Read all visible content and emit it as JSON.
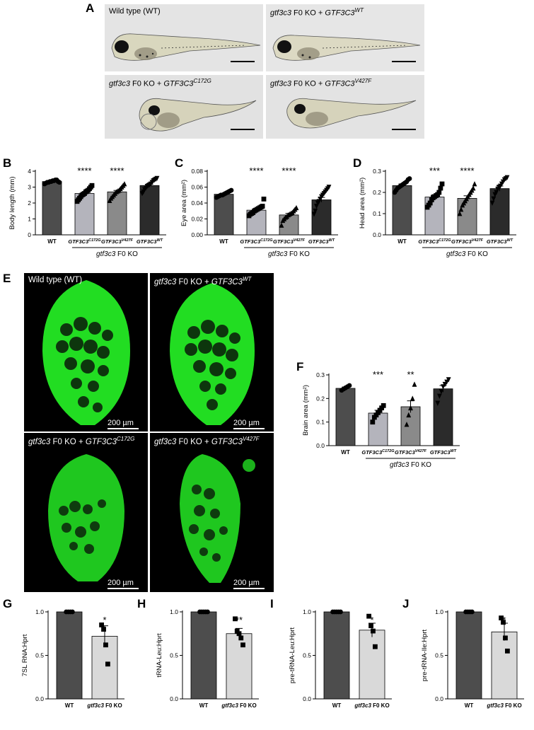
{
  "panel_a": {
    "letter": "A",
    "images": [
      {
        "parts": [
          {
            "t": "Wild type (WT)",
            "i": false
          }
        ]
      },
      {
        "parts": [
          {
            "t": "gtf3c3",
            "i": true
          },
          {
            "t": " F0 KO + ",
            "i": false
          },
          {
            "t": "GTF3C3",
            "i": true
          },
          {
            "t": "WT",
            "i": true,
            "sup": true
          }
        ]
      },
      {
        "parts": [
          {
            "t": "gtf3c3",
            "i": true
          },
          {
            "t": " F0 KO + ",
            "i": false
          },
          {
            "t": "GTF3C3",
            "i": true
          },
          {
            "t": "C172G",
            "i": true,
            "sup": true
          }
        ]
      },
      {
        "parts": [
          {
            "t": "gtf3c3",
            "i": true
          },
          {
            "t": " F0 KO + ",
            "i": false
          },
          {
            "t": "GTF3C3",
            "i": true
          },
          {
            "t": "V427F",
            "i": true,
            "sup": true
          }
        ]
      }
    ]
  },
  "panel_e": {
    "letter": "E",
    "scale_bar": "200 µm",
    "images": [
      {
        "parts": [
          {
            "t": "Wild type (WT)",
            "i": false
          }
        ]
      },
      {
        "parts": [
          {
            "t": "gtf3c3",
            "i": true
          },
          {
            "t": " F0 KO + ",
            "i": false
          },
          {
            "t": "GTF3C3",
            "i": true
          },
          {
            "t": "WT",
            "i": true,
            "sup": true
          }
        ]
      },
      {
        "parts": [
          {
            "t": "gtf3c3",
            "i": true
          },
          {
            "t": " F0 KO + ",
            "i": false
          },
          {
            "t": "GTF3C3",
            "i": true
          },
          {
            "t": "C172G",
            "i": true,
            "sup": true
          }
        ]
      },
      {
        "parts": [
          {
            "t": "gtf3c3",
            "i": true
          },
          {
            "t": " F0 KO + ",
            "i": false
          },
          {
            "t": "GTF3C3",
            "i": true
          },
          {
            "t": "V427F",
            "i": true,
            "sup": true
          }
        ]
      }
    ]
  },
  "group_label": {
    "italic": "gtf3c3",
    "rest": " F0 KO"
  },
  "colors": {
    "wt": "#4d4d4d",
    "c172g": "#b4b4bc",
    "v427f": "#8a8a8a",
    "rescue": "#2b2b2b",
    "ko": "#d9d9d9",
    "green": "#22dd22"
  },
  "chart_data": [
    {
      "id": "B",
      "type": "bar",
      "ylabel": "Body length (mm)",
      "ylim": [
        0,
        4
      ],
      "yticks": [
        "0",
        "1",
        "2",
        "3",
        "4"
      ],
      "categories": [
        {
          "base": "WT"
        },
        {
          "base": "GTF3C3",
          "sup": "C172G"
        },
        {
          "base": "GTF3C3",
          "sup": "V427F"
        },
        {
          "base": "GTF3C3",
          "sup": "WT"
        }
      ],
      "values": [
        3.35,
        2.6,
        2.7,
        3.1
      ],
      "errors": [
        0.04,
        0.09,
        0.09,
        0.08
      ],
      "significance": [
        "",
        "****",
        "****",
        ""
      ],
      "points": [
        [
          3.2,
          3.25,
          3.3,
          3.3,
          3.35,
          3.35,
          3.4,
          3.4,
          3.45,
          3.45,
          3.35,
          3.3
        ],
        [
          2.1,
          2.2,
          2.3,
          2.4,
          2.5,
          2.55,
          2.6,
          2.7,
          2.75,
          2.8,
          2.9,
          3.0,
          3.1
        ],
        [
          2.15,
          2.3,
          2.4,
          2.5,
          2.6,
          2.7,
          2.75,
          2.8,
          2.9,
          3.0,
          3.1,
          3.2
        ],
        [
          2.6,
          2.7,
          2.85,
          2.95,
          3.05,
          3.1,
          3.15,
          3.2,
          3.3,
          3.4,
          3.45,
          3.5,
          3.55
        ]
      ]
    },
    {
      "id": "C",
      "type": "bar",
      "ylabel": "Eye area (mm²)",
      "ylim": [
        0,
        0.08
      ],
      "yticks": [
        "0.00",
        "0.02",
        "0.04",
        "0.06",
        "0.08"
      ],
      "categories": [
        {
          "base": "WT"
        },
        {
          "base": "GTF3C3",
          "sup": "C172G"
        },
        {
          "base": "GTF3C3",
          "sup": "V427F"
        },
        {
          "base": "GTF3C3",
          "sup": "WT"
        }
      ],
      "values": [
        0.051,
        0.031,
        0.025,
        0.044
      ],
      "errors": [
        0.001,
        0.002,
        0.002,
        0.003
      ],
      "significance": [
        "",
        "****",
        "****",
        ""
      ],
      "points": [
        [
          0.047,
          0.048,
          0.049,
          0.05,
          0.05,
          0.051,
          0.052,
          0.053,
          0.054,
          0.055,
          0.056
        ],
        [
          0.024,
          0.026,
          0.027,
          0.028,
          0.03,
          0.031,
          0.032,
          0.033,
          0.034,
          0.035,
          0.036,
          0.045
        ],
        [
          0.012,
          0.018,
          0.02,
          0.022,
          0.023,
          0.025,
          0.026,
          0.027,
          0.028,
          0.03,
          0.032,
          0.034
        ],
        [
          0.026,
          0.03,
          0.036,
          0.04,
          0.042,
          0.045,
          0.048,
          0.05,
          0.052,
          0.054,
          0.056,
          0.058,
          0.06
        ]
      ]
    },
    {
      "id": "D",
      "type": "bar",
      "ylabel": "Head area (mm²)",
      "ylim": [
        0,
        0.3
      ],
      "yticks": [
        "0.0",
        "0.1",
        "0.2",
        "0.3"
      ],
      "categories": [
        {
          "base": "WT"
        },
        {
          "base": "GTF3C3",
          "sup": "C172G"
        },
        {
          "base": "GTF3C3",
          "sup": "V427F"
        },
        {
          "base": "GTF3C3",
          "sup": "WT"
        }
      ],
      "values": [
        0.232,
        0.178,
        0.172,
        0.218
      ],
      "errors": [
        0.008,
        0.01,
        0.012,
        0.012
      ],
      "significance": [
        "",
        "***",
        "****",
        ""
      ],
      "points": [
        [
          0.2,
          0.21,
          0.22,
          0.225,
          0.23,
          0.235,
          0.24,
          0.245,
          0.25,
          0.26,
          0.265
        ],
        [
          0.13,
          0.14,
          0.15,
          0.165,
          0.175,
          0.18,
          0.185,
          0.19,
          0.2,
          0.22,
          0.24
        ],
        [
          0.1,
          0.12,
          0.14,
          0.15,
          0.16,
          0.17,
          0.18,
          0.19,
          0.2,
          0.21,
          0.22,
          0.24
        ],
        [
          0.15,
          0.17,
          0.19,
          0.2,
          0.215,
          0.225,
          0.23,
          0.24,
          0.25,
          0.26,
          0.265,
          0.27
        ]
      ]
    },
    {
      "id": "F",
      "type": "bar",
      "ylabel": "Brain area (mm²)",
      "ylim": [
        0,
        0.3
      ],
      "yticks": [
        "0.0",
        "0.1",
        "0.2",
        "0.3"
      ],
      "categories": [
        {
          "base": "WT"
        },
        {
          "base": "GTF3C3",
          "sup": "C172G"
        },
        {
          "base": "GTF3C3",
          "sup": "V427F"
        },
        {
          "base": "GTF3C3",
          "sup": "WT"
        }
      ],
      "values": [
        0.243,
        0.138,
        0.165,
        0.241
      ],
      "errors": [
        0.006,
        0.012,
        0.025,
        0.014
      ],
      "significance": [
        "",
        "***",
        "**",
        ""
      ],
      "points": [
        [
          0.235,
          0.24,
          0.245,
          0.25,
          0.255
        ],
        [
          0.1,
          0.12,
          0.13,
          0.14,
          0.15,
          0.16,
          0.17
        ],
        [
          0.09,
          0.13,
          0.16,
          0.2,
          0.26
        ],
        [
          0.18,
          0.21,
          0.23,
          0.25,
          0.26,
          0.27,
          0.28
        ]
      ]
    },
    {
      "id": "G",
      "type": "bar",
      "ylabel": "7SL RNA:Hprt",
      "ylim": [
        0,
        1.0
      ],
      "yticks": [
        "0.0",
        "0.5",
        "1.0"
      ],
      "categories": [
        {
          "base": "WT"
        },
        {
          "italic": "gtf3c3",
          "rest": " F0 KO"
        }
      ],
      "values": [
        1.0,
        0.72
      ],
      "errors": [
        0.0,
        0.12
      ],
      "significance": [
        "",
        "*"
      ],
      "points": [
        [
          1.0,
          1.0,
          1.0,
          1.0
        ],
        [
          0.85,
          0.8,
          0.62,
          0.4
        ]
      ]
    },
    {
      "id": "H",
      "type": "bar",
      "ylabel": "tRNA-Leu:Hprt",
      "ylim": [
        0,
        1.0
      ],
      "yticks": [
        "0.0",
        "0.5",
        "1.0"
      ],
      "categories": [
        {
          "base": "WT"
        },
        {
          "italic": "gtf3c3",
          "rest": " F0 KO"
        }
      ],
      "values": [
        1.0,
        0.75
      ],
      "errors": [
        0.0,
        0.06
      ],
      "significance": [
        "",
        "**"
      ],
      "points": [
        [
          1.0,
          1.0,
          1.0,
          1.0,
          1.0
        ],
        [
          0.92,
          0.78,
          0.75,
          0.7,
          0.62
        ]
      ]
    },
    {
      "id": "I",
      "type": "bar",
      "ylabel": "pre-tRNA-Leu:Hprt",
      "ylim": [
        0,
        1.0
      ],
      "yticks": [
        "0.0",
        "0.5",
        "1.0"
      ],
      "categories": [
        {
          "base": "WT"
        },
        {
          "italic": "gtf3c3",
          "rest": " F0 KO"
        }
      ],
      "values": [
        1.0,
        0.79
      ],
      "errors": [
        0.0,
        0.08
      ],
      "significance": [
        "",
        "*"
      ],
      "points": [
        [
          1.0,
          1.0,
          1.0,
          1.0,
          1.0
        ],
        [
          0.95,
          0.84,
          0.78,
          0.6
        ]
      ]
    },
    {
      "id": "J",
      "type": "bar",
      "ylabel": "pre-tRNA-Ile:Hprt",
      "ylim": [
        0,
        1.0
      ],
      "yticks": [
        "0.0",
        "0.5",
        "1.0"
      ],
      "categories": [
        {
          "base": "WT"
        },
        {
          "italic": "gtf3c3",
          "rest": " F0 KO"
        }
      ],
      "values": [
        1.0,
        0.77
      ],
      "errors": [
        0.0,
        0.1
      ],
      "significance": [
        "",
        "*"
      ],
      "points": [
        [
          1.0,
          1.0,
          1.0,
          1.0
        ],
        [
          0.93,
          0.88,
          0.7,
          0.55
        ]
      ]
    }
  ]
}
